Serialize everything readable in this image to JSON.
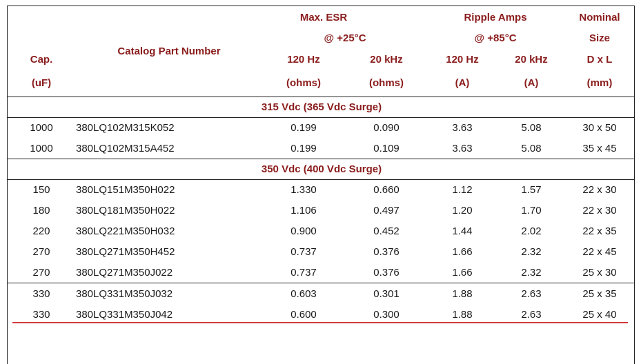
{
  "header": {
    "cap": "Cap.",
    "cap_unit": "(uF)",
    "catalog": "Catalog Part  Number",
    "esr_title": "Max. ESR",
    "esr_temp": "@ +25°C",
    "ripple_title": "Ripple Amps",
    "ripple_temp": "@ +85°C",
    "size_title": "Nominal",
    "size_sub": "Size",
    "size_dim": "D x L",
    "size_unit": "(mm)",
    "hz120": "120 Hz",
    "khz20": "20 kHz",
    "ohms": "(ohms)",
    "amps": "(A)"
  },
  "sections": [
    {
      "title": "315 Vdc (365 Vdc Surge)",
      "rows": [
        {
          "cap": "1000",
          "part": "380LQ102M315K052",
          "esr120": "0.199",
          "esr20k": "0.090",
          "rip120": "3.63",
          "rip20k": "5.08",
          "size": "30 x 50"
        },
        {
          "cap": "1000",
          "part": "380LQ102M315A452",
          "esr120": "0.199",
          "esr20k": "0.109",
          "rip120": "3.63",
          "rip20k": "5.08",
          "size": "35 x 45"
        }
      ]
    },
    {
      "title": "350 Vdc (400 Vdc Surge)",
      "rows": [
        {
          "cap": "150",
          "part": "380LQ151M350H022",
          "esr120": "1.330",
          "esr20k": "0.660",
          "rip120": "1.12",
          "rip20k": "1.57",
          "size": "22 x 30"
        },
        {
          "cap": "180",
          "part": "380LQ181M350H022",
          "esr120": "1.106",
          "esr20k": "0.497",
          "rip120": "1.20",
          "rip20k": "1.70",
          "size": "22 x 30"
        },
        {
          "cap": "220",
          "part": "380LQ221M350H032",
          "esr120": "0.900",
          "esr20k": "0.452",
          "rip120": "1.44",
          "rip20k": "2.02",
          "size": "22 x 35"
        },
        {
          "cap": "270",
          "part": "380LQ271M350H452",
          "esr120": "0.737",
          "esr20k": "0.376",
          "rip120": "1.66",
          "rip20k": "2.32",
          "size": "22 x 45"
        },
        {
          "cap": "270",
          "part": "380LQ271M350J022",
          "esr120": "0.737",
          "esr20k": "0.376",
          "rip120": "1.66",
          "rip20k": "2.32",
          "size": "25 x 30"
        },
        {
          "cap": "330",
          "part": "380LQ331M350J032",
          "esr120": "0.603",
          "esr20k": "0.301",
          "rip120": "1.88",
          "rip20k": "2.63",
          "size": "25 x 35"
        },
        {
          "cap": "330",
          "part": "380LQ331M350J042",
          "esr120": "0.600",
          "esr20k": "0.300",
          "rip120": "1.88",
          "rip20k": "2.63",
          "size": "25 x 40"
        }
      ]
    }
  ],
  "colors": {
    "header_text": "#8a1c1c",
    "annotation": "#d43a3a"
  }
}
